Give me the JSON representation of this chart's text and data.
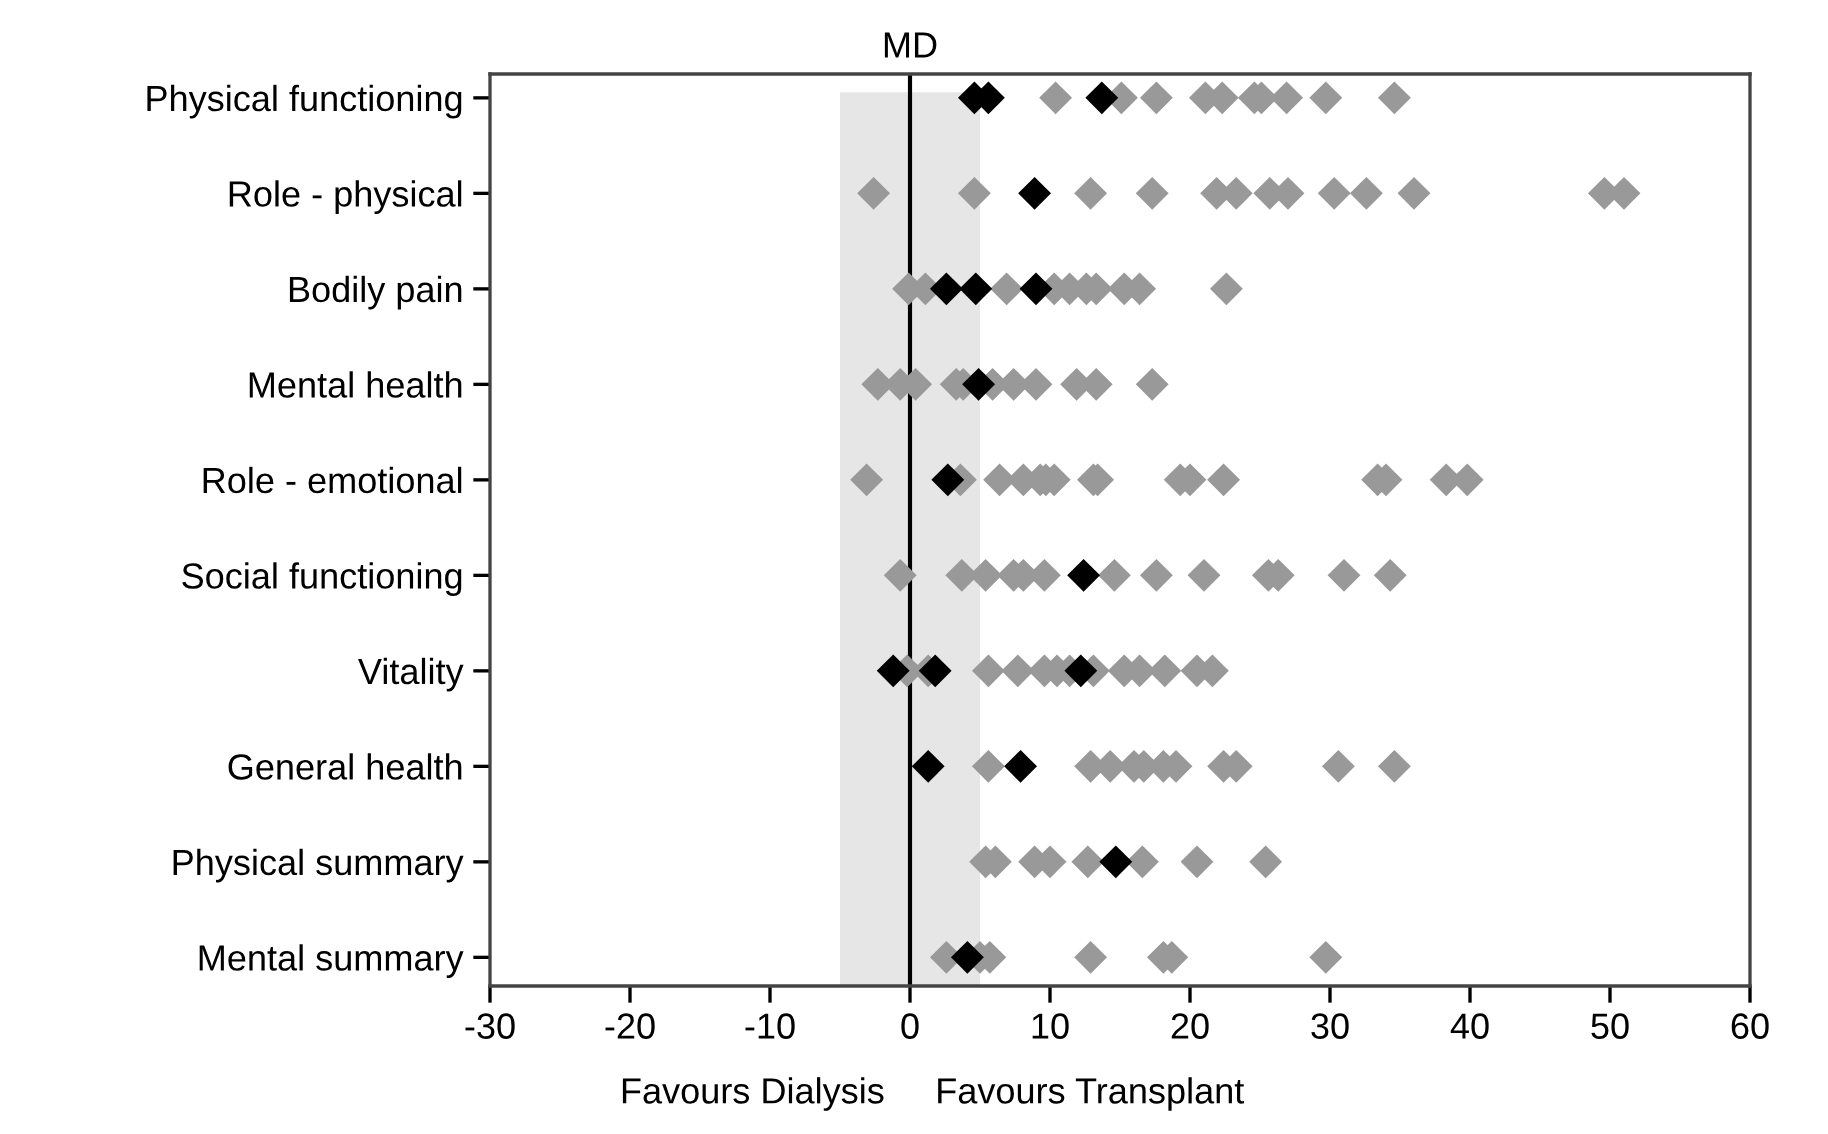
{
  "chart_data": {
    "type": "scatter",
    "orientation": "horizontal",
    "categories": [
      "Physical functioning",
      "Role - physical",
      "Bodily pain",
      "Mental health",
      "Role - emotional",
      "Social functioning",
      "Vitality",
      "General health",
      "Physical summary",
      "Mental summary"
    ],
    "series": [
      {
        "color": "#999999",
        "x": [
          "Physical functioning",
          "Physical functioning",
          "Physical functioning",
          "Physical functioning",
          "Physical functioning",
          "Physical functioning",
          "Physical functioning",
          "Physical functioning",
          "Physical functioning",
          "Physical functioning",
          "Role - physical",
          "Role - physical",
          "Role - physical",
          "Role - physical",
          "Role - physical",
          "Role - physical",
          "Role - physical",
          "Role - physical",
          "Role - physical",
          "Role - physical",
          "Role - physical",
          "Role - physical",
          "Role - physical",
          "Bodily pain",
          "Bodily pain",
          "Bodily pain",
          "Bodily pain",
          "Bodily pain",
          "Bodily pain",
          "Bodily pain",
          "Bodily pain",
          "Bodily pain",
          "Bodily pain",
          "Mental health",
          "Mental health",
          "Mental health",
          "Mental health",
          "Mental health",
          "Mental health",
          "Mental health",
          "Mental health",
          "Mental health",
          "Mental health",
          "Mental health",
          "Role - emotional",
          "Role - emotional",
          "Role - emotional",
          "Role - emotional",
          "Role - emotional",
          "Role - emotional",
          "Role - emotional",
          "Role - emotional",
          "Role - emotional",
          "Role - emotional",
          "Role - emotional",
          "Role - emotional",
          "Role - emotional",
          "Role - emotional",
          "Role - emotional",
          "Role - emotional",
          "Social functioning",
          "Social functioning",
          "Social functioning",
          "Social functioning",
          "Social functioning",
          "Social functioning",
          "Social functioning",
          "Social functioning",
          "Social functioning",
          "Social functioning",
          "Social functioning",
          "Social functioning",
          "Social functioning",
          "Vitality",
          "Vitality",
          "Vitality",
          "Vitality",
          "Vitality",
          "Vitality",
          "Vitality",
          "Vitality",
          "Vitality",
          "Vitality",
          "Vitality",
          "Vitality",
          "Vitality",
          "General health",
          "General health",
          "General health",
          "General health",
          "General health",
          "General health",
          "General health",
          "General health",
          "General health",
          "General health",
          "General health",
          "Physical summary",
          "Physical summary",
          "Physical summary",
          "Physical summary",
          "Physical summary",
          "Physical summary",
          "Physical summary",
          "Physical summary",
          "Mental summary",
          "Mental summary",
          "Mental summary",
          "Mental summary",
          "Mental summary",
          "Mental summary",
          "Mental summary"
        ],
        "values": [
          10.4,
          15.1,
          17.6,
          21.1,
          22.3,
          24.6,
          25.1,
          26.9,
          29.7,
          34.6,
          -2.6,
          4.6,
          12.9,
          17.3,
          21.9,
          23.3,
          25.7,
          27,
          30.3,
          32.6,
          36,
          49.6,
          51,
          -0.1,
          1.1,
          6.9,
          10.3,
          11.4,
          12.6,
          13.3,
          15.3,
          16.4,
          22.6,
          -2.3,
          -0.7,
          0.4,
          3.3,
          3.8,
          5.9,
          7.4,
          9,
          11.9,
          13.3,
          17.3,
          -3.1,
          3.6,
          6.4,
          8.1,
          9.3,
          9.7,
          10.3,
          13.1,
          13.4,
          19.3,
          20,
          22.4,
          33.4,
          34,
          38.3,
          39.8,
          -0.7,
          3.7,
          5.4,
          7.4,
          8.1,
          9.6,
          14.6,
          17.6,
          21,
          25.6,
          26.3,
          31,
          34.3,
          1.3,
          5.6,
          7.7,
          9.6,
          10.5,
          11.4,
          13.1,
          15.3,
          16.4,
          18.2,
          20.5,
          21.6,
          -0.2,
          5.6,
          12.9,
          14.3,
          16,
          16.7,
          18.1,
          19,
          22.4,
          23.3,
          30.6,
          34.6,
          5.4,
          6.1,
          8.9,
          10,
          12.7,
          16.6,
          20.5,
          25.4,
          2.6,
          5,
          5.7,
          12.9,
          18.1,
          18.7,
          29.7
        ]
      },
      {
        "color": "#000000",
        "x": [
          "Physical functioning",
          "Physical functioning",
          "Physical functioning",
          "Role - physical",
          "Bodily pain",
          "Bodily pain",
          "Bodily pain",
          "Mental health",
          "Role - emotional",
          "Social functioning",
          "Vitality",
          "Vitality",
          "Vitality",
          "General health",
          "General health",
          "Physical summary",
          "Mental summary"
        ],
        "values": [
          4.6,
          5.6,
          13.7,
          8.9,
          2.6,
          4.7,
          9,
          4.9,
          2.7,
          12.4,
          -1.2,
          1.8,
          12.2,
          1.3,
          7.9,
          14.7,
          4.1
        ]
      }
    ],
    "marker": "diamond",
    "xlim": [
      -30,
      60
    ],
    "xticks": [
      -30,
      -20,
      -10,
      0,
      10,
      20,
      30,
      40,
      50,
      60
    ],
    "ref_lines": [
      {
        "axis": "x",
        "value": 0,
        "label": "MD",
        "color": "#000000"
      }
    ],
    "bands": [
      {
        "axis": "x",
        "from": -5,
        "to": 5,
        "color": "#e6e6e6"
      }
    ],
    "annotations": [
      "Favours Dialysis",
      "Favours Transplant"
    ],
    "grid": false,
    "legend": false
  }
}
